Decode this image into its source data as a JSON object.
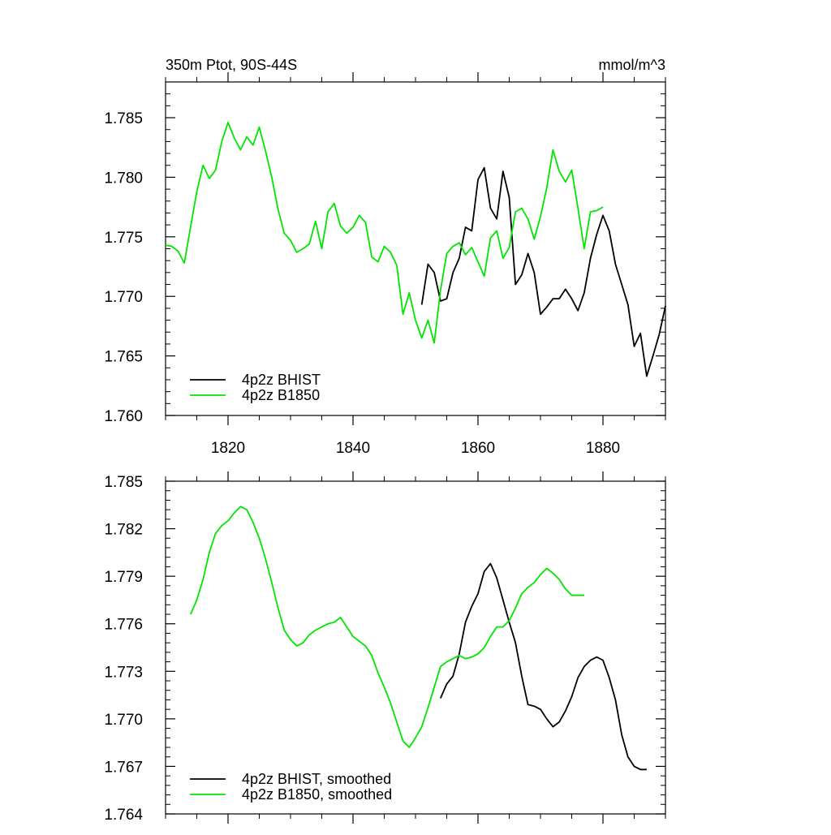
{
  "chart_data": [
    {
      "type": "line",
      "title_left": "350m Ptot, 90S-44S",
      "title_right": "mmol/m^3",
      "xlim": [
        1810,
        1890
      ],
      "ylim": [
        1.76,
        1.788
      ],
      "xticks": [
        1820,
        1840,
        1860,
        1880
      ],
      "xtick_labels": [
        "1820",
        "1840",
        "1860",
        "1880"
      ],
      "yticks": [
        1.76,
        1.765,
        1.77,
        1.775,
        1.78,
        1.785
      ],
      "ytick_labels": [
        "1.760",
        "1.765",
        "1.770",
        "1.775",
        "1.780",
        "1.785"
      ],
      "legend_position": "bottom-left",
      "series": [
        {
          "name": "4p2z BHIST",
          "color": "#000000",
          "x": [
            1851,
            1852,
            1853,
            1854,
            1855,
            1856,
            1857,
            1858,
            1859,
            1860,
            1861,
            1862,
            1863,
            1864,
            1865,
            1866,
            1867,
            1868,
            1869,
            1870,
            1871,
            1872,
            1873,
            1874,
            1875,
            1876,
            1877,
            1878,
            1879,
            1880,
            1881,
            1882,
            1883,
            1884,
            1885,
            1886,
            1887,
            1888,
            1889,
            1890
          ],
          "y": [
            1.7693,
            1.7727,
            1.772,
            1.7696,
            1.7698,
            1.772,
            1.7732,
            1.7758,
            1.7755,
            1.7798,
            1.7808,
            1.7774,
            1.7765,
            1.7805,
            1.7783,
            1.771,
            1.7718,
            1.7736,
            1.772,
            1.7685,
            1.7691,
            1.7698,
            1.7698,
            1.7706,
            1.7698,
            1.7688,
            1.7703,
            1.7732,
            1.7752,
            1.7768,
            1.7755,
            1.7727,
            1.771,
            1.7693,
            1.7658,
            1.7669,
            1.7633,
            1.765,
            1.7668,
            1.7692
          ]
        },
        {
          "name": "4p2z B1850",
          "color": "#00e600",
          "x": [
            1810,
            1811,
            1812,
            1813,
            1814,
            1815,
            1816,
            1817,
            1818,
            1819,
            1820,
            1821,
            1822,
            1823,
            1824,
            1825,
            1826,
            1827,
            1828,
            1829,
            1830,
            1831,
            1832,
            1833,
            1834,
            1835,
            1836,
            1837,
            1838,
            1839,
            1840,
            1841,
            1842,
            1843,
            1844,
            1845,
            1846,
            1847,
            1848,
            1849,
            1850,
            1851,
            1852,
            1853,
            1854,
            1855,
            1856,
            1857,
            1858,
            1859,
            1860,
            1861,
            1862,
            1863,
            1864,
            1865,
            1866,
            1867,
            1868,
            1869,
            1870,
            1871,
            1872,
            1873,
            1874,
            1875,
            1876,
            1877,
            1878,
            1879,
            1880
          ],
          "y": [
            1.7743,
            1.7742,
            1.7738,
            1.7728,
            1.7758,
            1.7788,
            1.781,
            1.7799,
            1.7806,
            1.783,
            1.7846,
            1.7833,
            1.7823,
            1.7834,
            1.7827,
            1.7842,
            1.7822,
            1.78,
            1.7773,
            1.7753,
            1.7747,
            1.7737,
            1.774,
            1.7744,
            1.7763,
            1.774,
            1.7771,
            1.7778,
            1.7759,
            1.7753,
            1.7758,
            1.7768,
            1.7762,
            1.7733,
            1.7729,
            1.7742,
            1.7737,
            1.7726,
            1.7685,
            1.7703,
            1.768,
            1.7665,
            1.768,
            1.7661,
            1.7705,
            1.7736,
            1.7742,
            1.7745,
            1.7735,
            1.7741,
            1.7729,
            1.7717,
            1.7749,
            1.7755,
            1.7732,
            1.7741,
            1.7771,
            1.7774,
            1.7765,
            1.7748,
            1.7767,
            1.7791,
            1.7823,
            1.7805,
            1.7796,
            1.7806,
            1.7774,
            1.774,
            1.7771,
            1.7772,
            1.7775
          ]
        }
      ]
    },
    {
      "type": "line",
      "xlim": [
        1810,
        1890
      ],
      "ylim": [
        1.764,
        1.785
      ],
      "xticks": [
        1820,
        1840,
        1860,
        1880
      ],
      "yticks": [
        1.764,
        1.767,
        1.77,
        1.773,
        1.776,
        1.779,
        1.782,
        1.785
      ],
      "ytick_labels": [
        "1.764",
        "1.767",
        "1.770",
        "1.773",
        "1.776",
        "1.779",
        "1.782",
        "1.785"
      ],
      "legend_position": "bottom-left",
      "series": [
        {
          "name": "4p2z BHIST, smoothed",
          "color": "#000000",
          "x": [
            1854,
            1855,
            1856,
            1857,
            1858,
            1859,
            1860,
            1861,
            1862,
            1863,
            1864,
            1865,
            1866,
            1867,
            1868,
            1869,
            1870,
            1871,
            1872,
            1873,
            1874,
            1875,
            1876,
            1877,
            1878,
            1879,
            1880,
            1881,
            1882,
            1883,
            1884,
            1885,
            1886,
            1887
          ],
          "y": [
            1.7713,
            1.7722,
            1.7727,
            1.7741,
            1.7761,
            1.7771,
            1.7779,
            1.7793,
            1.7798,
            1.7789,
            1.7775,
            1.7761,
            1.7748,
            1.7727,
            1.7709,
            1.7708,
            1.7706,
            1.77,
            1.7695,
            1.7698,
            1.7705,
            1.7714,
            1.7726,
            1.7733,
            1.7737,
            1.7739,
            1.7737,
            1.7726,
            1.7712,
            1.769,
            1.7676,
            1.767,
            1.7668,
            1.7668
          ]
        },
        {
          "name": "4p2z B1850, smoothed",
          "color": "#00e600",
          "x": [
            1814,
            1815,
            1816,
            1817,
            1818,
            1819,
            1820,
            1821,
            1822,
            1823,
            1824,
            1825,
            1826,
            1827,
            1828,
            1829,
            1830,
            1831,
            1832,
            1833,
            1834,
            1835,
            1836,
            1837,
            1838,
            1839,
            1840,
            1841,
            1842,
            1843,
            1844,
            1845,
            1846,
            1847,
            1848,
            1849,
            1850,
            1851,
            1852,
            1853,
            1854,
            1855,
            1856,
            1857,
            1858,
            1859,
            1860,
            1861,
            1862,
            1863,
            1864,
            1865,
            1866,
            1867,
            1868,
            1869,
            1870,
            1871,
            1872,
            1873,
            1874,
            1875,
            1876,
            1877
          ],
          "y": [
            1.7766,
            1.7775,
            1.7788,
            1.7805,
            1.7817,
            1.7822,
            1.7825,
            1.783,
            1.7834,
            1.7832,
            1.7824,
            1.7814,
            1.7801,
            1.7786,
            1.777,
            1.7756,
            1.775,
            1.7746,
            1.7748,
            1.7753,
            1.7756,
            1.7758,
            1.776,
            1.7761,
            1.7764,
            1.7758,
            1.7752,
            1.7749,
            1.7746,
            1.774,
            1.7729,
            1.772,
            1.771,
            1.7698,
            1.7686,
            1.7682,
            1.7688,
            1.7695,
            1.7707,
            1.772,
            1.7733,
            1.7736,
            1.7738,
            1.774,
            1.7738,
            1.7739,
            1.7741,
            1.7745,
            1.7752,
            1.7758,
            1.7758,
            1.7762,
            1.777,
            1.7779,
            1.7783,
            1.7786,
            1.7791,
            1.7795,
            1.7792,
            1.7788,
            1.7782,
            1.7778,
            1.7778,
            1.7778
          ]
        }
      ]
    }
  ]
}
